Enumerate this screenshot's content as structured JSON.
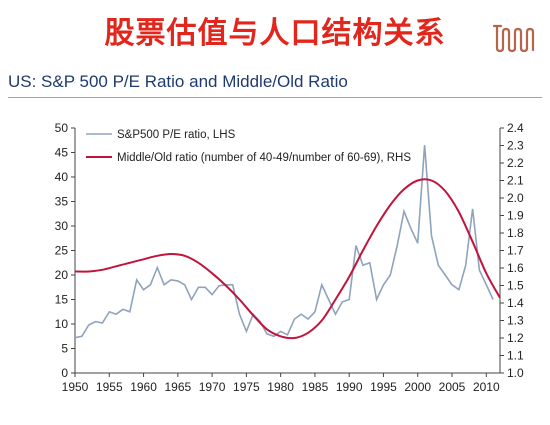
{
  "header": {
    "slide_title": "股票估值与人口结构关系",
    "chart_title": "US: S&P 500 P/E Ratio and Middle/Old Ratio"
  },
  "colors": {
    "title_red": "#e2261c",
    "logo": "#b5654a",
    "pe_series": "#8fa3bd",
    "ratio_series": "#c0143c"
  },
  "chart_data": {
    "type": "line",
    "xlim": [
      1950,
      2012
    ],
    "x_ticks": [
      "1950",
      "1955",
      "1960",
      "1965",
      "1970",
      "1975",
      "1980",
      "1985",
      "1990",
      "1995",
      "2000",
      "2005",
      "2010"
    ],
    "y_left": {
      "lim": [
        0,
        50
      ],
      "ticks": [
        "0",
        "5",
        "10",
        "15",
        "20",
        "25",
        "30",
        "35",
        "40",
        "45",
        "50"
      ]
    },
    "y_right": {
      "lim": [
        1.0,
        2.4
      ],
      "ticks": [
        "1.0",
        "1.1",
        "1.2",
        "1.3",
        "1.4",
        "1.5",
        "1.6",
        "1.7",
        "1.8",
        "1.9",
        "2.0",
        "2.1",
        "2.2",
        "2.3",
        "2.4"
      ]
    },
    "legend_position": "top-left",
    "series": [
      {
        "name": "S&P500 P/E ratio, LHS",
        "axis": "left",
        "x": [
          1950,
          1951,
          1952,
          1953,
          1954,
          1955,
          1956,
          1957,
          1958,
          1959,
          1960,
          1961,
          1962,
          1963,
          1964,
          1965,
          1966,
          1967,
          1968,
          1969,
          1970,
          1971,
          1972,
          1973,
          1974,
          1975,
          1976,
          1977,
          1978,
          1979,
          1980,
          1981,
          1982,
          1983,
          1984,
          1985,
          1986,
          1987,
          1988,
          1989,
          1990,
          1991,
          1992,
          1993,
          1994,
          1995,
          1996,
          1997,
          1998,
          1999,
          2000,
          2001,
          2002,
          2003,
          2004,
          2005,
          2006,
          2007,
          2008,
          2009,
          2010,
          2011
        ],
        "values": [
          7.2,
          7.5,
          9.8,
          10.5,
          10.2,
          12.5,
          12.0,
          13.0,
          12.5,
          19.0,
          17.0,
          18.0,
          21.5,
          18.0,
          19.0,
          18.8,
          18.0,
          15.0,
          17.5,
          17.5,
          16.0,
          17.8,
          18.0,
          18.0,
          12.0,
          8.5,
          12.0,
          10.5,
          8.0,
          7.5,
          8.5,
          7.8,
          11.0,
          12.0,
          11.0,
          12.5,
          18.0,
          15.0,
          12.0,
          14.5,
          15.0,
          26.0,
          22.0,
          22.5,
          15.0,
          18.0,
          20.0,
          26.0,
          33.0,
          29.5,
          26.5,
          46.5,
          28.0,
          22.0,
          20.0,
          18.0,
          17.0,
          22.0,
          33.5,
          21.0,
          18.0,
          15.0
        ]
      },
      {
        "name": "Middle/Old ratio (number of 40-49/number of 60-69), RHS",
        "axis": "right",
        "x": [
          1950,
          1952,
          1954,
          1956,
          1958,
          1960,
          1962,
          1964,
          1966,
          1968,
          1970,
          1972,
          1974,
          1976,
          1978,
          1980,
          1982,
          1984,
          1986,
          1988,
          1990,
          1992,
          1994,
          1996,
          1998,
          2000,
          2002,
          2004,
          2006,
          2008,
          2010,
          2012
        ],
        "values": [
          1.58,
          1.58,
          1.59,
          1.61,
          1.63,
          1.65,
          1.67,
          1.68,
          1.67,
          1.63,
          1.57,
          1.5,
          1.42,
          1.33,
          1.25,
          1.21,
          1.2,
          1.23,
          1.3,
          1.42,
          1.55,
          1.7,
          1.84,
          1.96,
          2.05,
          2.1,
          2.1,
          2.04,
          1.92,
          1.75,
          1.57,
          1.43
        ]
      }
    ]
  }
}
